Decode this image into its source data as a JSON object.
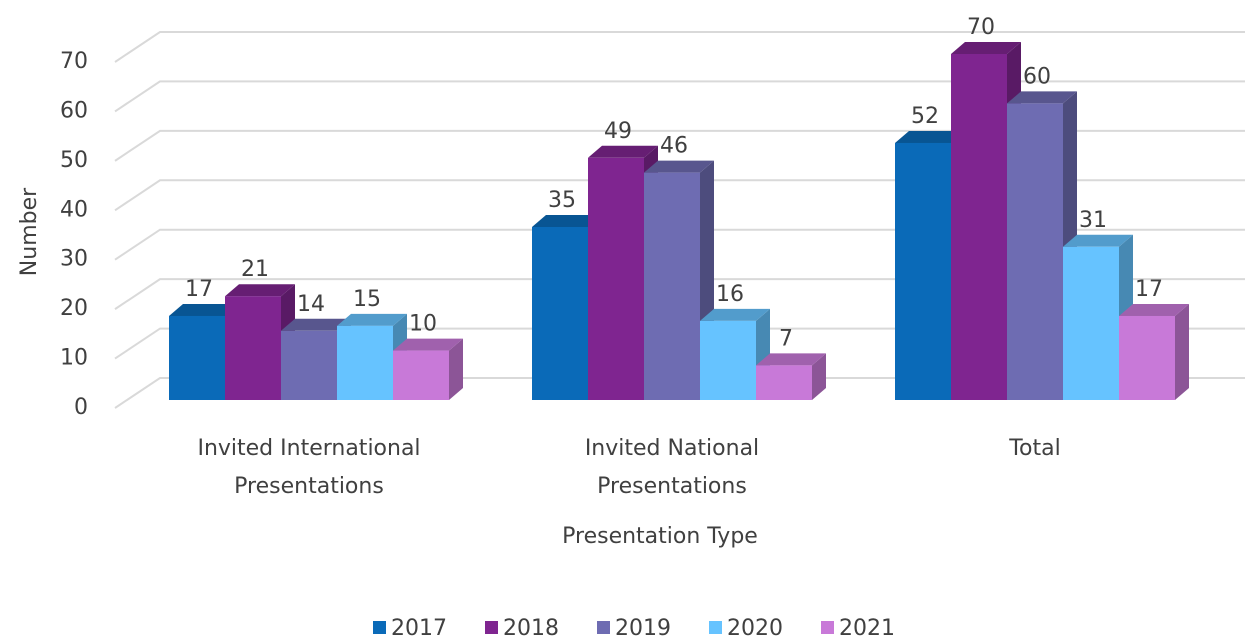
{
  "chart_data": {
    "type": "bar3d",
    "categories": [
      "Invited International Presentations",
      "Invited National Presentations",
      "Total"
    ],
    "series": [
      {
        "name": "2017",
        "color": "#0a6ab8",
        "values": [
          17,
          35,
          52
        ]
      },
      {
        "name": "2018",
        "color": "#7f2590",
        "values": [
          21,
          49,
          70
        ]
      },
      {
        "name": "2019",
        "color": "#6e6cb2",
        "values": [
          14,
          46,
          60
        ]
      },
      {
        "name": "2020",
        "color": "#66c3ff",
        "values": [
          15,
          16,
          31
        ]
      },
      {
        "name": "2021",
        "color": "#c879d8",
        "values": [
          10,
          7,
          17
        ]
      }
    ],
    "x_label": "Presentation Type",
    "y_label": "Number",
    "ylim": [
      0,
      70
    ],
    "yticks": [
      0,
      10,
      20,
      30,
      40,
      50,
      60,
      70
    ],
    "grid": true,
    "legend": "bottom"
  }
}
